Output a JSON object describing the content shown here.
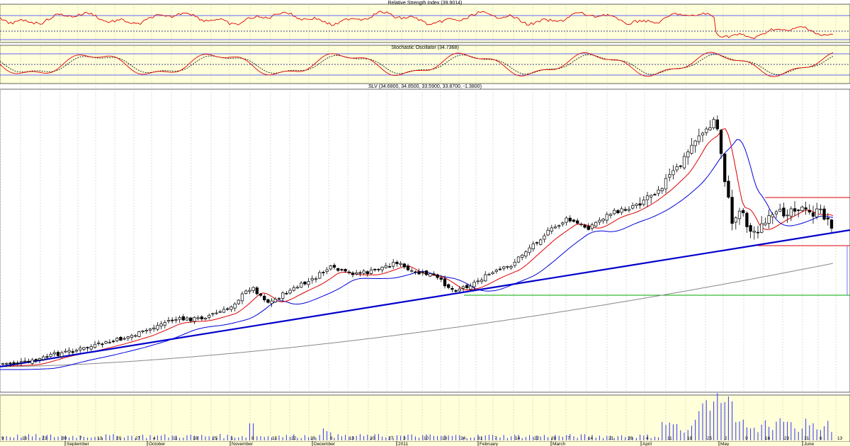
{
  "chart_data": {
    "type": "candlestick",
    "symbol": "SLV",
    "panels": {
      "rsi": {
        "title": "Relative Strength Index (39.9014)",
        "value": 39.9014
      },
      "stochastic": {
        "title": "Stochastic Oscillator (34.7368)",
        "value": 34.7368
      },
      "price": {
        "title": "SLV (34.6800, 34.8500, 33.5900, 33.8700, -1.3800)",
        "open": 34.68,
        "high": 34.85,
        "low": 33.59,
        "close": 33.87,
        "change": -1.38
      },
      "volume": {
        "title": ""
      }
    },
    "day_ticks": [
      "9",
      "16",
      "23",
      "30",
      "7",
      "13",
      "20",
      "27",
      "4",
      "11",
      "18",
      "25",
      "1",
      "8",
      "15",
      "22",
      "29",
      "6",
      "13",
      "20",
      "27",
      "3",
      "10",
      "18",
      "24",
      "31",
      "7",
      "14",
      "22",
      "28",
      "7",
      "14",
      "21",
      "28",
      "4",
      "11",
      "18",
      "25",
      "2",
      "9",
      "16",
      "23",
      "31",
      "6",
      "13"
    ],
    "month_labels": [
      "September",
      "October",
      "November",
      "December",
      "2011",
      "February",
      "March",
      "April",
      "May",
      "June"
    ],
    "indicators": [
      "rsi-line",
      "stochastic-k",
      "stochastic-d",
      "ema-fast-red",
      "ema-slow-blue",
      "sma-long-gray",
      "trendline-blue",
      "support-green",
      "resistance-red"
    ],
    "colors": {
      "candle_up": "#ffffff",
      "candle_down": "#000000",
      "ema_fast": "#dd0000",
      "ema_slow": "#0000dd",
      "sma_long": "#888888",
      "trend": "#0000cc",
      "support": "#00aa00",
      "panel_bg": "#ffffd9",
      "grid": "#cccccc"
    },
    "grid": true,
    "legend": "none"
  }
}
